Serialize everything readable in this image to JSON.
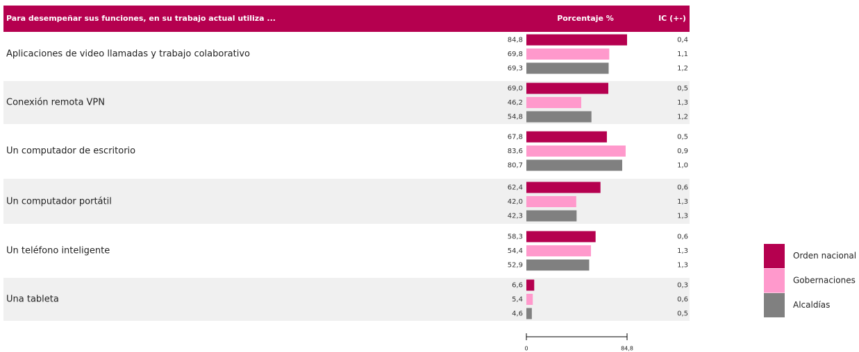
{
  "chart_data": {
    "type": "bar",
    "orientation": "horizontal",
    "title": "Para desempeñar sus funciones, en su trabajo actual utiliza ...",
    "value_header": "Porcentaje %",
    "error_header": "IC (+-)",
    "categories": [
      "Aplicaciones de video llamadas y trabajo colaborativo",
      "Conexión remota VPN",
      "Un computador de escritorio",
      "Un computador portátil",
      "Un teléfono inteligente",
      "Una tableta"
    ],
    "series": [
      {
        "name": "Orden nacional",
        "color": "#b5004f",
        "values": [
          84.8,
          69.0,
          67.8,
          62.4,
          58.3,
          6.6
        ],
        "value_labels": [
          "84,8",
          "69,0",
          "67,8",
          "62,4",
          "58,3",
          "6,6"
        ],
        "errors": [
          0.4,
          0.5,
          0.5,
          0.6,
          0.6,
          0.3
        ],
        "error_labels": [
          "0,4",
          "0,5",
          "0,5",
          "0,6",
          "0,6",
          "0,3"
        ]
      },
      {
        "name": "Gobernaciones",
        "color": "#ff99cc",
        "values": [
          69.8,
          46.2,
          83.6,
          42.0,
          54.4,
          5.4
        ],
        "value_labels": [
          "69,8",
          "46,2",
          "83,6",
          "42,0",
          "54,4",
          "5,4"
        ],
        "errors": [
          1.1,
          1.3,
          0.9,
          1.3,
          1.3,
          0.6
        ],
        "error_labels": [
          "1,1",
          "1,3",
          "0,9",
          "1,3",
          "1,3",
          "0,6"
        ]
      },
      {
        "name": "Alcaldías",
        "color": "#808080",
        "values": [
          69.3,
          54.8,
          80.7,
          42.3,
          52.9,
          4.6
        ],
        "value_labels": [
          "69,3",
          "54,8",
          "80,7",
          "42,3",
          "52,9",
          "4,6"
        ],
        "errors": [
          1.2,
          1.2,
          1.0,
          1.3,
          1.3,
          0.5
        ],
        "error_labels": [
          "1,2",
          "1,2",
          "1,0",
          "1,3",
          "1,3",
          "0,5"
        ]
      }
    ],
    "xlim": [
      0,
      84.8
    ],
    "xticks": [
      0,
      {
        "value": 84.8,
        "label": "84,8"
      }
    ]
  }
}
